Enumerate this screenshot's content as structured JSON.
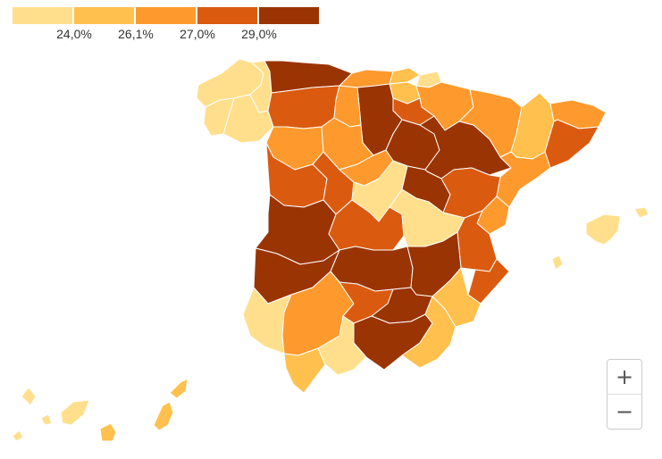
{
  "legend": {
    "colors": [
      "#ffdf8c",
      "#ffc04d",
      "#fe9a2d",
      "#da5b10",
      "#9b3403"
    ],
    "ticks": [
      "24,0%",
      "26,1%",
      "27,0%",
      "29,0%"
    ]
  },
  "zoom": {
    "in_label": "+",
    "out_label": "−"
  },
  "map_data": {
    "provinces": [
      {
        "name": "A Coruña",
        "class": 0
      },
      {
        "name": "Lugo",
        "class": 0
      },
      {
        "name": "Pontevedra",
        "class": 0
      },
      {
        "name": "Ourense",
        "class": 0
      },
      {
        "name": "Asturias",
        "class": 4
      },
      {
        "name": "León",
        "class": 3
      },
      {
        "name": "Cantabria",
        "class": 2
      },
      {
        "name": "Bizkaia",
        "class": 1
      },
      {
        "name": "Gipuzkoa",
        "class": 0
      },
      {
        "name": "Álava",
        "class": 1
      },
      {
        "name": "Navarra",
        "class": 2
      },
      {
        "name": "La Rioja",
        "class": 3
      },
      {
        "name": "Burgos",
        "class": 4
      },
      {
        "name": "Palencia",
        "class": 2
      },
      {
        "name": "Zamora",
        "class": 2
      },
      {
        "name": "Valladolid",
        "class": 2
      },
      {
        "name": "Soria",
        "class": 4
      },
      {
        "name": "Huesca",
        "class": 2
      },
      {
        "name": "Zaragoza",
        "class": 4
      },
      {
        "name": "Lleida",
        "class": 1
      },
      {
        "name": "Girona",
        "class": 2
      },
      {
        "name": "Barcelona",
        "class": 3
      },
      {
        "name": "Tarragona",
        "class": 2
      },
      {
        "name": "Salamanca",
        "class": 3
      },
      {
        "name": "Ávila",
        "class": 3
      },
      {
        "name": "Segovia",
        "class": 2
      },
      {
        "name": "Madrid",
        "class": 0
      },
      {
        "name": "Guadalajara",
        "class": 4
      },
      {
        "name": "Teruel",
        "class": 3
      },
      {
        "name": "Castellón",
        "class": 2
      },
      {
        "name": "Cáceres",
        "class": 4
      },
      {
        "name": "Toledo",
        "class": 3
      },
      {
        "name": "Cuenca",
        "class": 0
      },
      {
        "name": "Valencia",
        "class": 3
      },
      {
        "name": "Badajoz",
        "class": 4
      },
      {
        "name": "Ciudad Real",
        "class": 4
      },
      {
        "name": "Albacete",
        "class": 4
      },
      {
        "name": "Alicante",
        "class": 3
      },
      {
        "name": "Murcia",
        "class": 1
      },
      {
        "name": "Huelva",
        "class": 0
      },
      {
        "name": "Sevilla",
        "class": 2
      },
      {
        "name": "Córdoba",
        "class": 3
      },
      {
        "name": "Jaén",
        "class": 4
      },
      {
        "name": "Granada",
        "class": 4
      },
      {
        "name": "Almería",
        "class": 1
      },
      {
        "name": "Cádiz",
        "class": 1
      },
      {
        "name": "Málaga",
        "class": 0
      },
      {
        "name": "Illes Balears",
        "class": 0
      },
      {
        "name": "Santa Cruz de Tenerife",
        "class": 0
      },
      {
        "name": "Las Palmas",
        "class": 1
      }
    ]
  }
}
